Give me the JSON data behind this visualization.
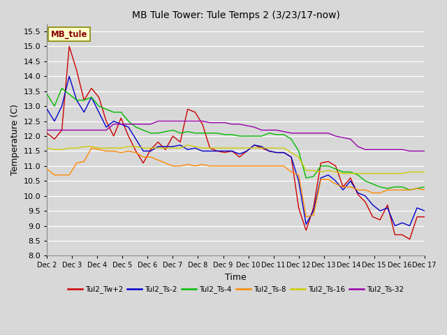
{
  "title": "MB Tule Tower: Tule Temps 2 (3/23/17-now)",
  "xlabel": "Time",
  "ylabel": "Temperature (C)",
  "ylim": [
    8.0,
    15.75
  ],
  "yticks": [
    8.0,
    8.5,
    9.0,
    9.5,
    10.0,
    10.5,
    11.0,
    11.5,
    12.0,
    12.5,
    13.0,
    13.5,
    14.0,
    14.5,
    15.0,
    15.5
  ],
  "bg_color": "#d8d8d8",
  "grid_color": "#ffffff",
  "legend_box_color": "#ffffcc",
  "legend_box_edge": "#888800",
  "legend_text": "MB_tule",
  "series": [
    {
      "label": "Tul2_Tw+2",
      "color": "#cc0000"
    },
    {
      "label": "Tul2_Ts-2",
      "color": "#0000cc"
    },
    {
      "label": "Tul2_Ts-4",
      "color": "#00bb00"
    },
    {
      "label": "Tul2_Ts-8",
      "color": "#ff8800"
    },
    {
      "label": "Tul2_Ts-16",
      "color": "#cccc00"
    },
    {
      "label": "Tul2_Ts-32",
      "color": "#9900aa"
    }
  ],
  "x_tick_labels": [
    "Dec 2",
    "Dec 3",
    "Dec 4",
    "Dec 5",
    "Dec 6",
    "Dec 7",
    "Dec 8",
    "Dec 9",
    "Dec 10",
    "Dec 11",
    "Dec 12",
    "Dec 13",
    "Dec 14",
    "Dec 15",
    "Dec 16",
    "Dec 17"
  ],
  "x_ticks": [
    0,
    1,
    2,
    3,
    4,
    5,
    6,
    7,
    8,
    9,
    10,
    11,
    12,
    13,
    14,
    15
  ],
  "xlim": [
    0,
    15
  ],
  "tw2": [
    12.1,
    11.9,
    12.2,
    15.0,
    14.2,
    13.2,
    13.6,
    13.3,
    12.5,
    12.0,
    12.6,
    12.0,
    11.5,
    11.1,
    11.55,
    11.8,
    11.55,
    12.0,
    11.8,
    12.9,
    12.8,
    12.4,
    11.6,
    11.5,
    11.45,
    11.5,
    11.3,
    11.5,
    11.7,
    11.6,
    11.5,
    11.45,
    11.45,
    11.3,
    9.6,
    8.85,
    9.6,
    11.1,
    11.15,
    11.0,
    10.3,
    10.6,
    10.05,
    9.8,
    9.3,
    9.2,
    9.7,
    8.7,
    8.7,
    8.55,
    9.3,
    9.3
  ],
  "ts2": [
    12.9,
    12.5,
    13.0,
    14.0,
    13.2,
    12.8,
    13.3,
    12.8,
    12.3,
    12.5,
    12.4,
    12.3,
    11.9,
    11.5,
    11.5,
    11.65,
    11.65,
    11.65,
    11.7,
    11.55,
    11.6,
    11.5,
    11.5,
    11.5,
    11.5,
    11.5,
    11.4,
    11.5,
    11.7,
    11.65,
    11.5,
    11.45,
    11.45,
    11.3,
    10.5,
    9.05,
    9.5,
    10.6,
    10.7,
    10.5,
    10.2,
    10.5,
    10.1,
    10.0,
    9.7,
    9.5,
    9.6,
    9.0,
    9.1,
    9.0,
    9.6,
    9.5
  ],
  "ts4": [
    13.4,
    13.0,
    13.6,
    13.4,
    13.2,
    13.2,
    13.3,
    13.0,
    12.9,
    12.8,
    12.8,
    12.5,
    12.3,
    12.2,
    12.1,
    12.1,
    12.15,
    12.2,
    12.1,
    12.15,
    12.1,
    12.1,
    12.1,
    12.1,
    12.05,
    12.05,
    12.0,
    12.0,
    12.0,
    12.0,
    12.1,
    12.05,
    12.05,
    11.9,
    11.5,
    10.6,
    10.65,
    11.0,
    11.0,
    10.9,
    10.8,
    10.8,
    10.7,
    10.5,
    10.4,
    10.3,
    10.25,
    10.3,
    10.3,
    10.2,
    10.25,
    10.3
  ],
  "ts8": [
    10.9,
    10.7,
    10.7,
    10.7,
    11.1,
    11.15,
    11.6,
    11.55,
    11.5,
    11.5,
    11.45,
    11.5,
    11.45,
    11.3,
    11.3,
    11.2,
    11.1,
    11.0,
    11.0,
    11.05,
    11.0,
    11.05,
    11.0,
    11.0,
    11.0,
    11.0,
    11.0,
    11.0,
    11.0,
    11.0,
    11.0,
    11.0,
    11.0,
    10.8,
    10.7,
    9.3,
    9.35,
    10.55,
    10.55,
    10.4,
    10.3,
    10.3,
    10.2,
    10.2,
    10.1,
    10.1,
    10.2,
    10.2,
    10.2,
    10.2,
    10.25,
    10.2
  ],
  "ts16": [
    11.6,
    11.55,
    11.55,
    11.6,
    11.6,
    11.65,
    11.65,
    11.6,
    11.6,
    11.6,
    11.6,
    11.65,
    11.65,
    11.6,
    11.6,
    11.6,
    11.6,
    11.6,
    11.6,
    11.7,
    11.65,
    11.6,
    11.6,
    11.6,
    11.6,
    11.6,
    11.6,
    11.6,
    11.6,
    11.6,
    11.6,
    11.6,
    11.6,
    11.45,
    11.3,
    10.85,
    10.85,
    10.8,
    10.85,
    10.8,
    10.75,
    10.75,
    10.75,
    10.75,
    10.75,
    10.75,
    10.75,
    10.75,
    10.75,
    10.8,
    10.8,
    10.8
  ],
  "ts32": [
    12.2,
    12.2,
    12.2,
    12.2,
    12.2,
    12.2,
    12.2,
    12.2,
    12.2,
    12.4,
    12.4,
    12.4,
    12.4,
    12.4,
    12.4,
    12.5,
    12.5,
    12.5,
    12.5,
    12.5,
    12.5,
    12.5,
    12.45,
    12.45,
    12.45,
    12.4,
    12.4,
    12.35,
    12.3,
    12.2,
    12.2,
    12.2,
    12.15,
    12.1,
    12.1,
    12.1,
    12.1,
    12.1,
    12.1,
    12.0,
    11.95,
    11.9,
    11.65,
    11.55,
    11.55,
    11.55,
    11.55,
    11.55,
    11.55,
    11.5,
    11.5,
    11.5
  ]
}
